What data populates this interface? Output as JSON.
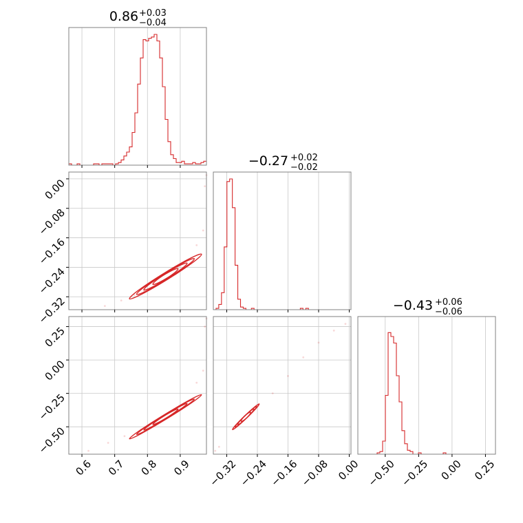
{
  "chart_data": {
    "type": "corner",
    "colors": {
      "series": "#d62728",
      "grid": "#c8c8c8",
      "frame": "#808080"
    },
    "grid": true,
    "parameters": [
      {
        "median": 0.86,
        "plus": 0.03,
        "minus": 0.04,
        "title_main": "0.86",
        "title_sup": "+0.03",
        "title_sub": "−0.04",
        "range": [
          0.56,
          0.98
        ],
        "ticks": [
          0.6,
          0.7,
          0.8,
          0.9
        ],
        "tick_labels": [
          "0.6",
          "0.7",
          "0.8",
          "0.9"
        ],
        "hist": {
          "start": 0.56,
          "bin_width": 0.0084,
          "counts": [
            0.01,
            0,
            0,
            0.01,
            0,
            0,
            0,
            0,
            0,
            0.01,
            0.01,
            0,
            0.01,
            0.01,
            0.01,
            0.01,
            0,
            0.01,
            0.02,
            0.04,
            0.07,
            0.1,
            0.14,
            0.25,
            0.4,
            0.62,
            0.82,
            0.96,
            0.95,
            0.97,
            0.98,
            1.0,
            0.95,
            0.82,
            0.6,
            0.35,
            0.18,
            0.08,
            0.05,
            0.02,
            0.02,
            0.03,
            0.01,
            0.01,
            0.01,
            0.02,
            0.01,
            0.01,
            0.02,
            0.03
          ]
        }
      },
      {
        "median": -0.27,
        "plus": 0.02,
        "minus": 0.02,
        "title_main": "−0.27",
        "title_sup": "+0.02",
        "title_sub": "−0.02",
        "range_x": [
          -0.355,
          0.0045
        ],
        "range_y": [
          -0.355,
          0.0185
        ],
        "ticks": [
          -0.32,
          -0.24,
          -0.16,
          -0.08,
          0.0
        ],
        "tick_labels": [
          "−0.32",
          "−0.24",
          "−0.16",
          "−0.08",
          "0.00"
        ],
        "hist": {
          "start": -0.355,
          "bin_width": 0.0071,
          "counts": [
            0,
            0.01,
            0.04,
            0.13,
            0.48,
            0.98,
            1.0,
            0.78,
            0.34,
            0.08,
            0.02,
            0.01,
            0,
            0,
            0.01,
            0,
            0,
            0,
            0,
            0,
            0,
            0,
            0,
            0,
            0,
            0,
            0,
            0,
            0,
            0,
            0,
            0,
            0.01,
            0,
            0.01,
            0,
            0,
            0,
            0,
            0,
            0,
            0,
            0,
            0,
            0,
            0,
            0,
            0,
            0,
            0
          ]
        }
      },
      {
        "median": -0.43,
        "plus": 0.06,
        "minus": 0.06,
        "title_main": "−0.43",
        "title_sup": "+0.06",
        "title_sub": "−0.06",
        "range": [
          -0.705,
          0.325
        ],
        "ticks": [
          -0.5,
          -0.25,
          0.0,
          0.25
        ],
        "tick_labels": [
          "−0.50",
          "−0.25",
          "0.00",
          "0.25"
        ],
        "hist": {
          "start": -0.705,
          "bin_width": 0.0206,
          "counts": [
            0,
            0,
            0,
            0,
            0,
            0,
            0,
            0.01,
            0.02,
            0.1,
            0.45,
            0.93,
            0.9,
            0.85,
            0.6,
            0.4,
            0.18,
            0.08,
            0.03,
            0.02,
            0,
            0,
            0.01,
            0,
            0,
            0,
            0,
            0,
            0,
            0,
            0,
            0.01,
            0,
            0,
            0,
            0,
            0,
            0,
            0,
            0,
            0,
            0,
            0,
            0,
            0,
            0,
            0,
            0,
            0,
            0
          ]
        }
      }
    ],
    "pairs": [
      {
        "x_param": 0,
        "y_param": 1,
        "center": [
          0.855,
          -0.265
        ],
        "major_half": 0.11,
        "minor_half": 0.006,
        "slope": 0.55,
        "trail": [
          [
            0.67,
            -0.345
          ],
          [
            0.72,
            -0.33
          ],
          [
            0.76,
            -0.315
          ],
          [
            0.79,
            -0.305
          ],
          [
            0.95,
            -0.18
          ],
          [
            0.97,
            -0.14
          ],
          [
            0.975,
            -0.02
          ],
          [
            0.98,
            0.01
          ]
        ]
      },
      {
        "x_param": 0,
        "y_param": 2,
        "center": [
          0.855,
          -0.425
        ],
        "major_half": 0.11,
        "minor_half": 0.011,
        "slope": 1.5,
        "trail": [
          [
            0.62,
            -0.68
          ],
          [
            0.68,
            -0.62
          ],
          [
            0.73,
            -0.57
          ],
          [
            0.78,
            -0.52
          ],
          [
            0.95,
            -0.17
          ],
          [
            0.97,
            -0.08
          ],
          [
            0.975,
            0.25
          ],
          [
            0.98,
            0.31
          ]
        ]
      },
      {
        "x_param": 1,
        "y_param": 2,
        "center": [
          -0.27,
          -0.425
        ],
        "major_half": 0.035,
        "minor_half": 0.004,
        "slope": 2.75,
        "trail": [
          [
            -0.35,
            -0.68
          ],
          [
            -0.34,
            -0.65
          ],
          [
            -0.2,
            -0.25
          ],
          [
            -0.16,
            -0.12
          ],
          [
            -0.12,
            0.02
          ],
          [
            -0.08,
            0.13
          ],
          [
            -0.04,
            0.22
          ],
          [
            -0.01,
            0.27
          ]
        ]
      }
    ]
  }
}
